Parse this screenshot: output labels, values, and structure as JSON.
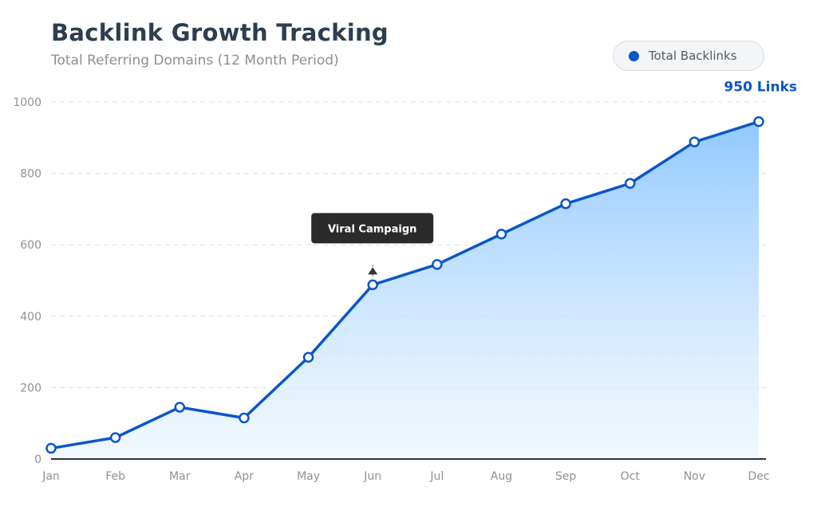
{
  "header": {
    "title": "Backlink Growth Tracking",
    "subtitle": "Total Referring Domains (12 Month Period)"
  },
  "legend": {
    "label": "Total Backlinks",
    "color": "#0a56c8"
  },
  "chart_data": {
    "type": "area",
    "title": "Backlink Growth Tracking",
    "subtitle": "Total Referring Domains (12 Month Period)",
    "xlabel": "",
    "ylabel": "",
    "categories": [
      "Jan",
      "Feb",
      "Mar",
      "Apr",
      "May",
      "Jun",
      "Jul",
      "Aug",
      "Sep",
      "Oct",
      "Nov",
      "Dec"
    ],
    "series": [
      {
        "name": "Total Backlinks",
        "values": [
          30,
          60,
          145,
          115,
          285,
          488,
          545,
          630,
          715,
          772,
          888,
          945
        ],
        "color": "#0a56c8"
      }
    ],
    "ylim": [
      0,
      1000
    ],
    "yticks": [
      0,
      200,
      400,
      600,
      800,
      1000
    ],
    "grid": true,
    "legend_position": "top-right",
    "annotations": [
      {
        "text": "Viral Campaign",
        "category": "Jun",
        "value": 488
      },
      {
        "text": "950 Links",
        "category": "Dec",
        "value": 945
      }
    ]
  }
}
